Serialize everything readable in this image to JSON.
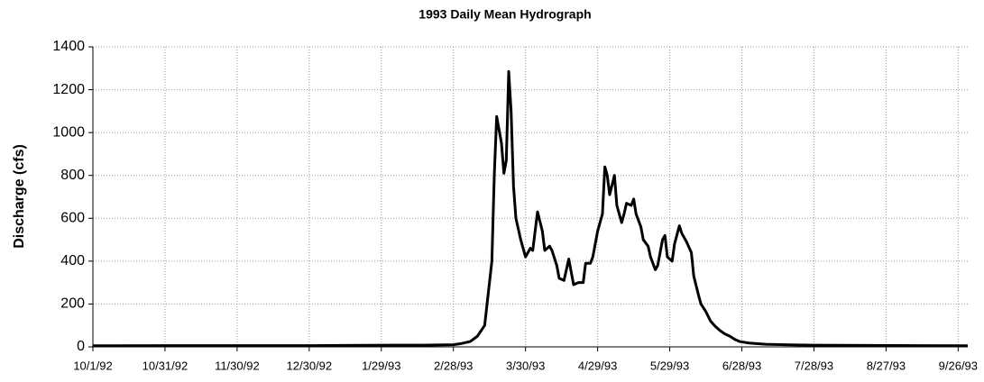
{
  "chart_data": {
    "type": "line",
    "title": "1993 Daily Mean Hydrograph",
    "y_label": "Discharge (cfs)",
    "x": [
      "10/1/92",
      "11/1/92",
      "12/1/92",
      "1/1/93",
      "2/1/93",
      "2/15/93",
      "2/28/93",
      "3/3/93",
      "3/7/93",
      "3/10/93",
      "3/13/93",
      "3/14/93",
      "3/16/93",
      "3/17/93",
      "3/18/93",
      "3/20/93",
      "3/21/93",
      "3/22/93",
      "3/23/93",
      "3/24/93",
      "3/25/93",
      "3/26/93",
      "3/28/93",
      "3/30/93",
      "4/1/93",
      "4/2/93",
      "4/4/93",
      "4/6/93",
      "4/7/93",
      "4/9/93",
      "4/10/93",
      "4/12/93",
      "4/13/93",
      "4/15/93",
      "4/17/93",
      "4/18/93",
      "4/19/93",
      "4/21/93",
      "4/23/93",
      "4/24/93",
      "4/26/93",
      "4/27/93",
      "4/29/93",
      "5/1/93",
      "5/2/93",
      "5/3/93",
      "5/4/93",
      "5/6/93",
      "5/7/93",
      "5/9/93",
      "5/10/93",
      "5/11/93",
      "5/13/93",
      "5/14/93",
      "5/15/93",
      "5/17/93",
      "5/18/93",
      "5/20/93",
      "5/21/93",
      "5/23/93",
      "5/24/93",
      "5/26/93",
      "5/27/93",
      "5/28/93",
      "5/30/93",
      "5/31/93",
      "6/2/93",
      "6/3/93",
      "6/5/93",
      "6/7/93",
      "6/8/93",
      "6/10/93",
      "6/11/93",
      "6/13/93",
      "6/15/93",
      "6/17/93",
      "6/19/93",
      "6/21/93",
      "6/23/93",
      "6/25/93",
      "6/27/93",
      "7/1/93",
      "7/8/93",
      "7/16/93",
      "7/27/93",
      "9/30/93"
    ],
    "values": [
      5,
      6,
      6,
      6,
      8,
      8,
      10,
      15,
      25,
      50,
      100,
      200,
      400,
      800,
      1075,
      950,
      810,
      870,
      1285,
      1100,
      750,
      600,
      500,
      420,
      460,
      450,
      630,
      540,
      450,
      470,
      450,
      380,
      320,
      310,
      410,
      350,
      290,
      300,
      300,
      390,
      390,
      420,
      540,
      620,
      840,
      800,
      710,
      800,
      660,
      580,
      620,
      670,
      660,
      690,
      620,
      560,
      500,
      470,
      420,
      360,
      380,
      500,
      520,
      420,
      400,
      480,
      565,
      530,
      490,
      440,
      330,
      240,
      200,
      165,
      120,
      95,
      75,
      60,
      50,
      35,
      25,
      18,
      12,
      10,
      8,
      5
    ],
    "color": "#000000",
    "xlim": [
      "10/1/92",
      "9/30/93"
    ],
    "xticks": [
      "10/1/92",
      "10/31/92",
      "11/30/92",
      "12/30/92",
      "1/29/93",
      "2/28/93",
      "3/30/93",
      "4/29/93",
      "5/29/93",
      "6/28/93",
      "7/28/93",
      "8/27/93",
      "9/26/93"
    ],
    "ylim": [
      0,
      1400
    ],
    "yticks": [
      0,
      200,
      400,
      600,
      800,
      1000,
      1200,
      1400
    ],
    "grid": true
  }
}
